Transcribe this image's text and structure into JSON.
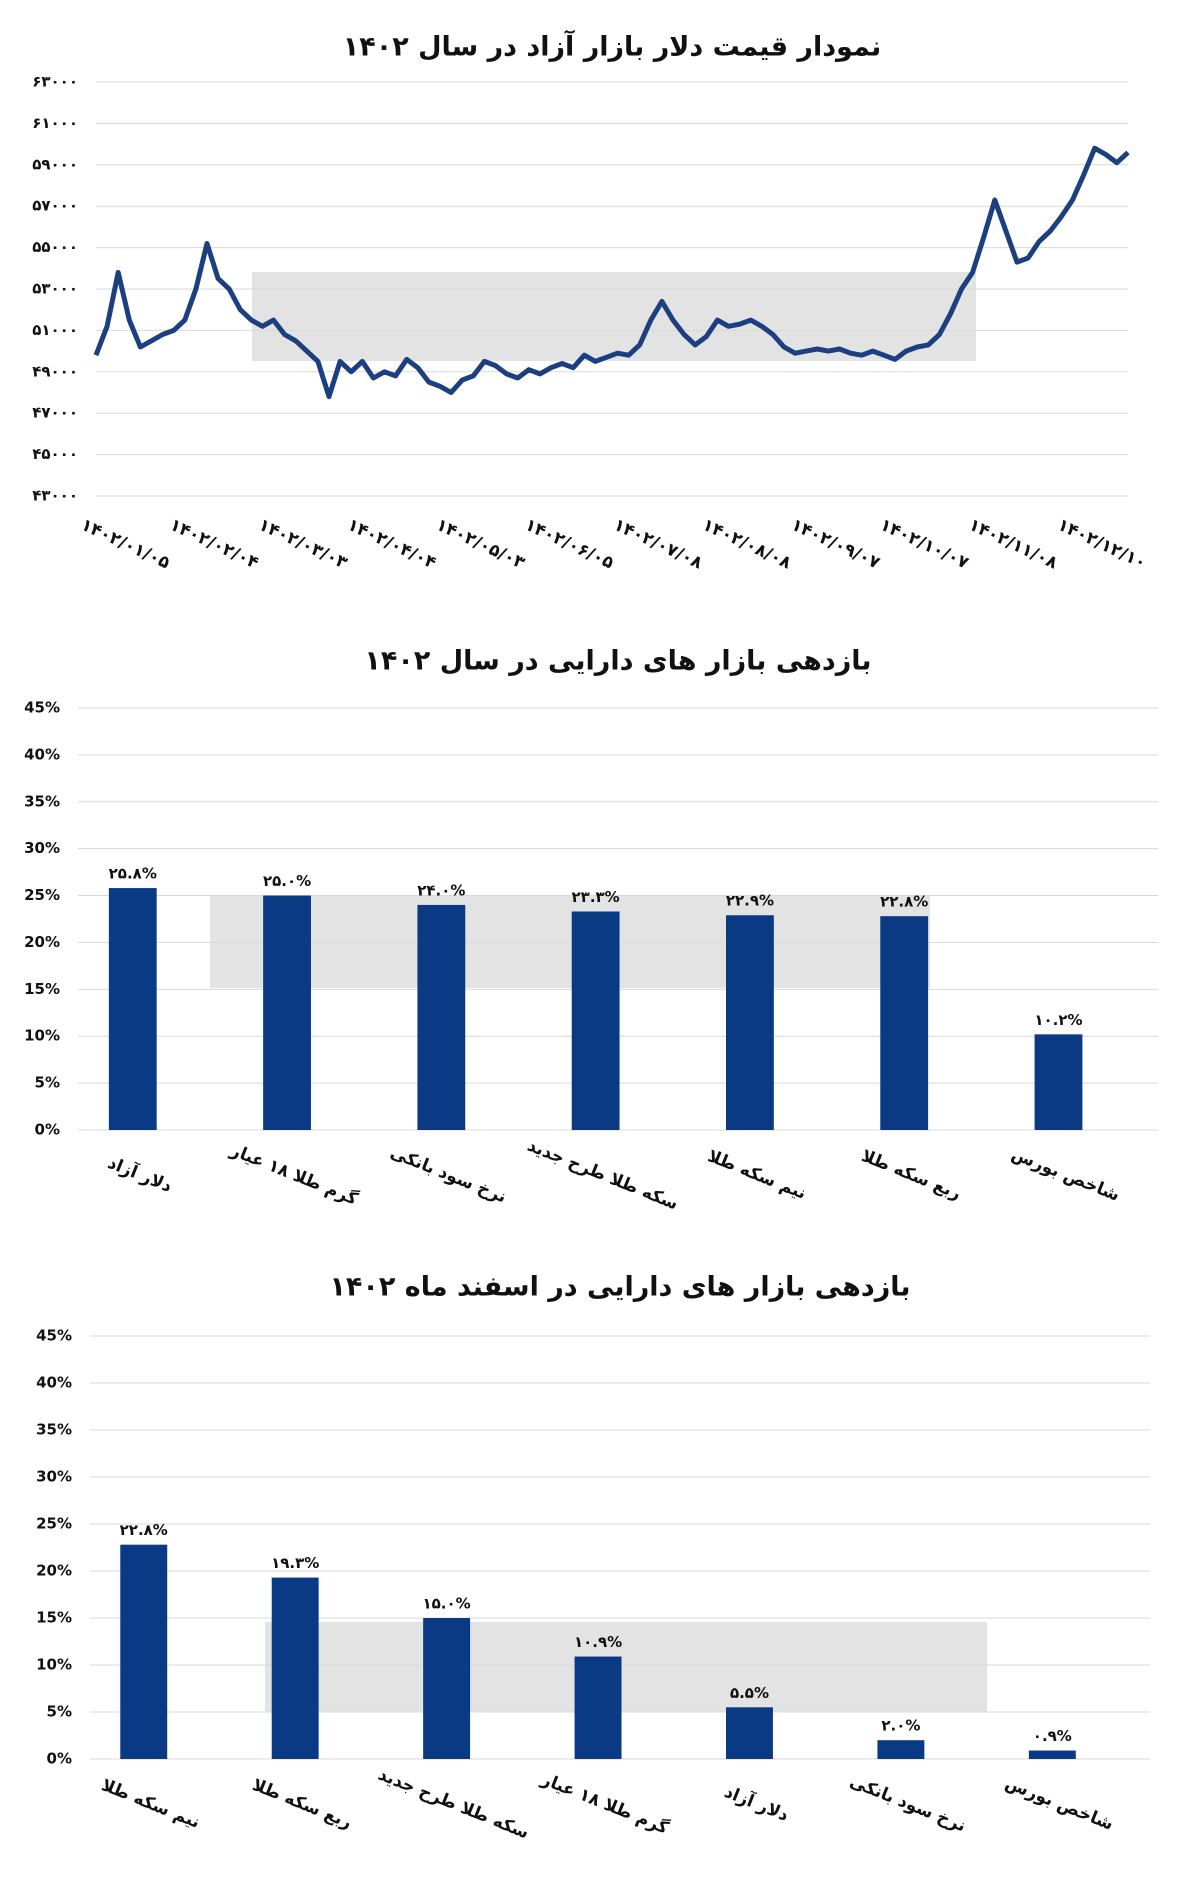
{
  "chart_data": [
    {
      "type": "line",
      "title": "نمودار قیمت دلار بازار آزاد در سال ۱۴۰۲",
      "categories": [
        "۱۴۰۲/۰۱/۰۵",
        null,
        null,
        null,
        null,
        null,
        null,
        null,
        "۱۴۰۲/۰۲/۰۴",
        null,
        null,
        null,
        null,
        null,
        null,
        null,
        "۱۴۰۲/۰۳/۰۳",
        null,
        null,
        null,
        null,
        null,
        null,
        null,
        "۱۴۰۲/۰۴/۰۴",
        null,
        null,
        null,
        null,
        null,
        null,
        null,
        "۱۴۰۲/۰۵/۰۳",
        null,
        null,
        null,
        null,
        null,
        null,
        null,
        "۱۴۰۲/۰۶/۰۵",
        null,
        null,
        null,
        null,
        null,
        null,
        null,
        "۱۴۰۲/۰۷/۰۸",
        null,
        null,
        null,
        null,
        null,
        null,
        null,
        "۱۴۰۲/۰۸/۰۸",
        null,
        null,
        null,
        null,
        null,
        null,
        null,
        "۱۴۰۲/۰۹/۰۷",
        null,
        null,
        null,
        null,
        null,
        null,
        null,
        "۱۴۰۲/۱۰/۰۷",
        null,
        null,
        null,
        null,
        null,
        null,
        null,
        "۱۴۰۲/۱۱/۰۸",
        null,
        null,
        null,
        null,
        null,
        null,
        null,
        "۱۴۰۲/۱۲/۱۰",
        null,
        null,
        null,
        null,
        null
      ],
      "values": [
        49800,
        51200,
        53800,
        51500,
        50200,
        50500,
        50800,
        51000,
        51500,
        53000,
        55200,
        53500,
        53000,
        52000,
        51500,
        51200,
        51500,
        50800,
        50500,
        50000,
        49500,
        47800,
        49500,
        49000,
        49500,
        48700,
        49000,
        48800,
        49600,
        49200,
        48500,
        48300,
        48000,
        48600,
        48800,
        49500,
        49300,
        48900,
        48700,
        49100,
        48900,
        49200,
        49400,
        49200,
        49800,
        49500,
        49700,
        49900,
        49800,
        50300,
        51500,
        52400,
        51500,
        50800,
        50300,
        50700,
        51500,
        51200,
        51300,
        51500,
        51200,
        50800,
        50200,
        49900,
        50000,
        50100,
        50000,
        50100,
        49900,
        49800,
        50000,
        49800,
        49600,
        50000,
        50200,
        50300,
        50800,
        51800,
        53000,
        53800,
        55500,
        57300,
        55800,
        54300,
        54500,
        55300,
        55800,
        56500,
        57300,
        58500,
        59800,
        59500,
        59100,
        59600
      ],
      "color": "#1c3f80",
      "ylim": [
        43000,
        63000
      ],
      "yticks": [
        {
          "value": 43000,
          "label": "۴۳۰۰۰"
        },
        {
          "value": 45000,
          "label": "۴۵۰۰۰"
        },
        {
          "value": 47000,
          "label": "۴۷۰۰۰"
        },
        {
          "value": 49000,
          "label": "۴۹۰۰۰"
        },
        {
          "value": 51000,
          "label": "۵۱۰۰۰"
        },
        {
          "value": 53000,
          "label": "۵۳۰۰۰"
        },
        {
          "value": 55000,
          "label": "۵۵۰۰۰"
        },
        {
          "value": 57000,
          "label": "۵۷۰۰۰"
        },
        {
          "value": 59000,
          "label": "۵۹۰۰۰"
        },
        {
          "value": 61000,
          "label": "۶۱۰۰۰"
        },
        {
          "value": 63000,
          "label": "۶۳۰۰۰"
        }
      ],
      "grid": true
    },
    {
      "type": "bar",
      "title": "بازدهی بازار های دارایی در سال ۱۴۰۲",
      "categories": [
        "دلار آزاد",
        "گرم طلا ۱۸ عیار",
        "نرخ سود بانکی",
        "سکه طلا طرح جدید",
        "نیم سکه طلا",
        "ربع سکه طلا",
        "شاخص بورس"
      ],
      "values": [
        25.8,
        25.0,
        24.0,
        23.3,
        22.9,
        22.8,
        10.2
      ],
      "value_labels": [
        "۲۵.۸%",
        "۲۵.۰%",
        "۲۴.۰%",
        "۲۳.۳%",
        "۲۲.۹%",
        "۲۲.۸%",
        "۱۰.۲%"
      ],
      "color": "#0b3a85",
      "ylim": [
        0,
        45
      ],
      "yticks": [
        {
          "value": 0,
          "label": "0%"
        },
        {
          "value": 5,
          "label": "5%"
        },
        {
          "value": 10,
          "label": "10%"
        },
        {
          "value": 15,
          "label": "15%"
        },
        {
          "value": 20,
          "label": "20%"
        },
        {
          "value": 25,
          "label": "25%"
        },
        {
          "value": 30,
          "label": "30%"
        },
        {
          "value": 35,
          "label": "35%"
        },
        {
          "value": 40,
          "label": "40%"
        },
        {
          "value": 45,
          "label": "45%"
        }
      ],
      "grid": true
    },
    {
      "type": "bar",
      "title": "بازدهی بازار های دارایی در اسفند ماه ۱۴۰۲",
      "categories": [
        "نیم سکه طلا",
        "ربع سکه طلا",
        "سکه طلا طرح جدید",
        "گرم طلا ۱۸ عیار",
        "دلار آزاد",
        "نرخ سود بانکی",
        "شاخص بورس"
      ],
      "values": [
        22.8,
        19.3,
        15.0,
        10.9,
        5.5,
        2.0,
        0.9
      ],
      "value_labels": [
        "۲۲.۸%",
        "۱۹.۳%",
        "۱۵.۰%",
        "۱۰.۹%",
        "۵.۵%",
        "۲.۰%",
        "۰.۹%"
      ],
      "color": "#0b3a85",
      "ylim": [
        0,
        45
      ],
      "yticks": [
        {
          "value": 0,
          "label": "0%"
        },
        {
          "value": 5,
          "label": "5%"
        },
        {
          "value": 10,
          "label": "10%"
        },
        {
          "value": 15,
          "label": "15%"
        },
        {
          "value": 20,
          "label": "20%"
        },
        {
          "value": 25,
          "label": "25%"
        },
        {
          "value": 30,
          "label": "30%"
        },
        {
          "value": 35,
          "label": "35%"
        },
        {
          "value": 40,
          "label": "40%"
        },
        {
          "value": 45,
          "label": "45%"
        }
      ],
      "grid": true
    }
  ]
}
